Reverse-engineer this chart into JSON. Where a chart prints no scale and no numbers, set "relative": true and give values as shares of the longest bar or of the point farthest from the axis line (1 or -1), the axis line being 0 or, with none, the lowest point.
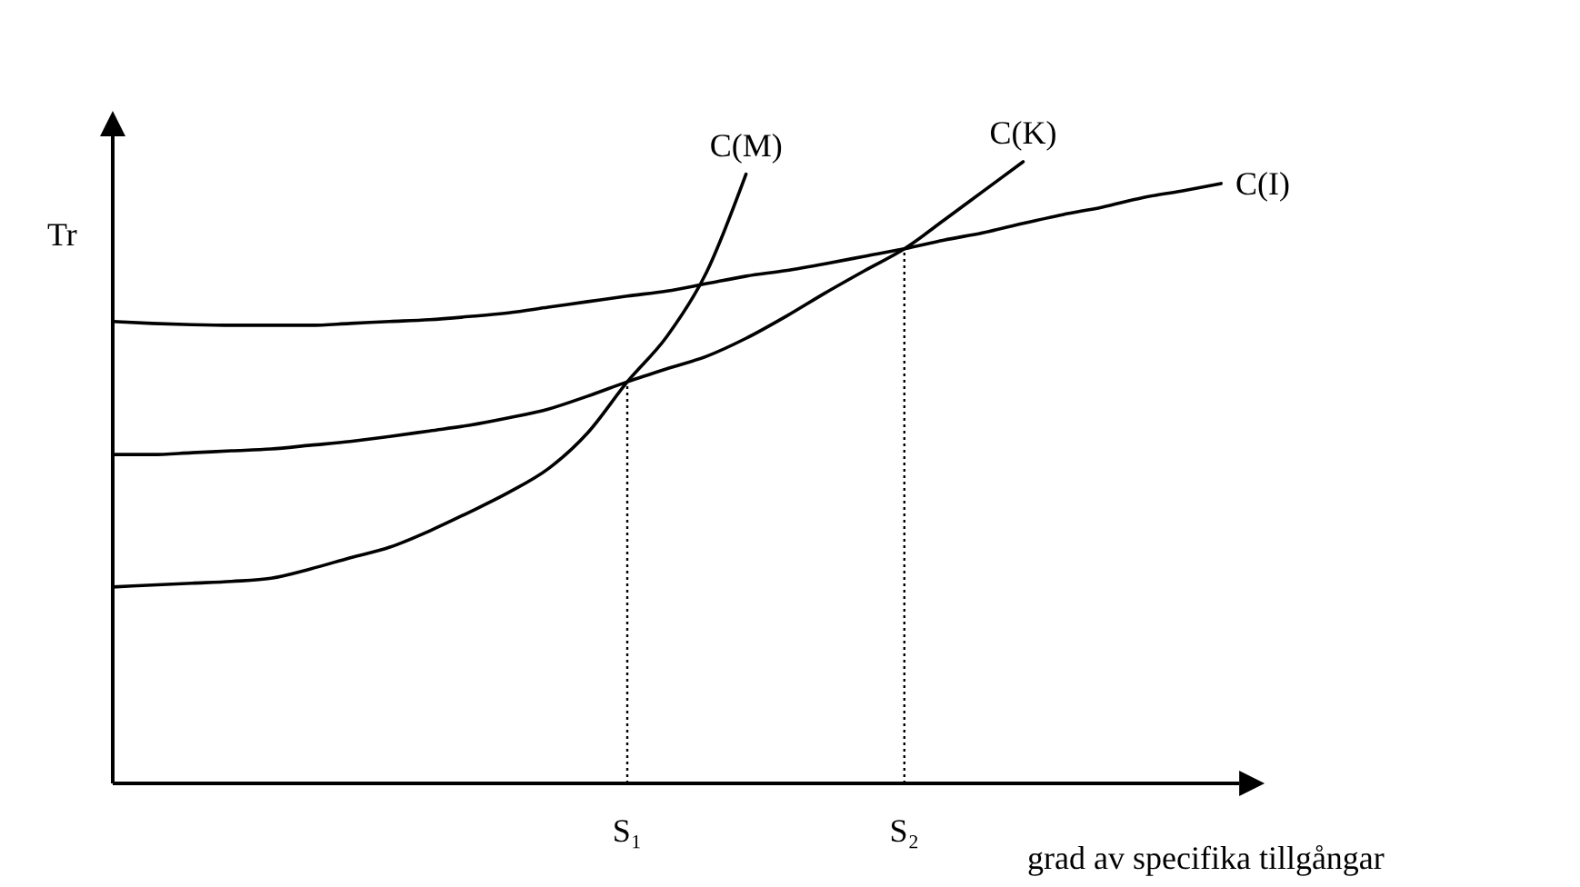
{
  "chart_data": {
    "type": "line",
    "relative": true,
    "ylabel": "Tr",
    "xlabel": "grad av specifika tillgångar",
    "categories": [
      null,
      null,
      null,
      null,
      null,
      null,
      null,
      null,
      null,
      null,
      null,
      null,
      null,
      "S₁",
      null,
      null,
      null,
      null,
      null,
      null,
      "S₂",
      null,
      null,
      null,
      null,
      null,
      null,
      null,
      null
    ],
    "series": [
      {
        "name": "C(M)",
        "color": "#000000",
        "values": [
          0.316,
          0.319,
          0.322,
          0.325,
          0.33,
          0.345,
          0.363,
          0.38,
          0.406,
          0.436,
          0.468,
          0.506,
          0.564,
          0.646,
          0.719,
          0.822,
          0.98,
          null,
          null,
          null,
          null,
          null,
          null,
          null,
          null,
          null,
          null,
          null,
          null
        ]
      },
      {
        "name": "C(K)",
        "color": "#000000",
        "values": [
          0.529,
          0.529,
          0.532,
          0.535,
          0.538,
          0.544,
          0.55,
          0.558,
          0.567,
          0.576,
          0.588,
          0.602,
          0.623,
          0.646,
          0.667,
          0.687,
          0.716,
          0.751,
          0.789,
          0.825,
          0.86,
          0.906,
          0.953,
          1.0,
          null,
          null,
          null,
          null,
          null
        ]
      },
      {
        "name": "C(I)",
        "color": "#000000",
        "values": [
          0.743,
          0.74,
          0.738,
          0.737,
          0.737,
          0.737,
          0.74,
          0.743,
          0.746,
          0.751,
          0.757,
          0.766,
          0.775,
          0.784,
          0.792,
          0.804,
          0.816,
          0.825,
          0.836,
          0.848,
          0.86,
          0.874,
          0.886,
          0.901,
          0.915,
          0.927,
          0.942,
          0.953,
          0.965
        ]
      }
    ],
    "ref_lines": [
      {
        "axis": "x",
        "value": "S₁",
        "line_style": "dotted"
      },
      {
        "axis": "x",
        "value": "S₂",
        "line_style": "dotted"
      }
    ],
    "tick_labels": "x",
    "line_style": "solid"
  }
}
